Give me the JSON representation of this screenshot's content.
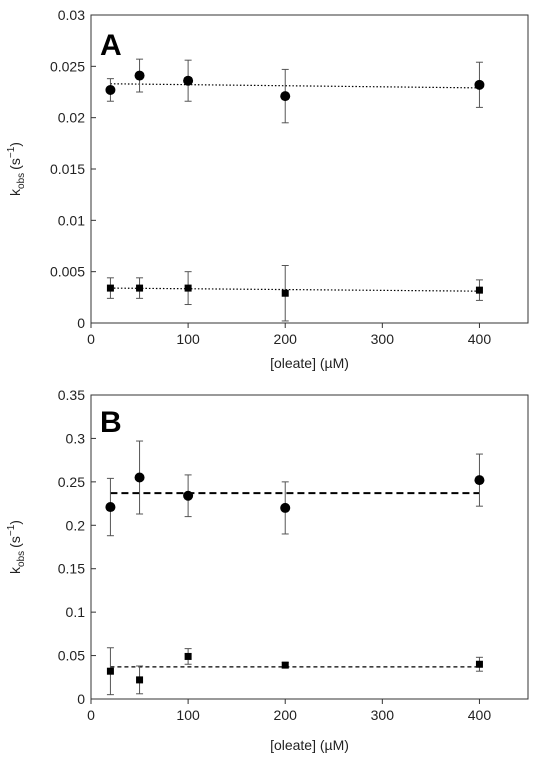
{
  "chart_data": [
    {
      "type": "scatter",
      "panel_label": "A",
      "xlabel": "[oleate] (µM)",
      "ylabel_main": "k",
      "ylabel_sub": "obs",
      "ylabel_unit": "(s",
      "ylabel_exp": "−1",
      "ylabel_close": ")",
      "xlim": [
        0,
        450
      ],
      "ylim": [
        0,
        0.03
      ],
      "xticks": [
        0,
        100,
        200,
        300,
        400
      ],
      "xtick_labels": [
        "0",
        "100",
        "200",
        "300",
        "400"
      ],
      "yticks": [
        0,
        0.005,
        0.01,
        0.015,
        0.02,
        0.025,
        0.03
      ],
      "ytick_labels": [
        "0",
        "0.005",
        "0.01",
        "0.015",
        "0.02",
        "0.025",
        "0.03"
      ],
      "grid": false,
      "series": [
        {
          "marker": "circle",
          "x": [
            20,
            50,
            100,
            200,
            400
          ],
          "y": [
            0.0227,
            0.0241,
            0.0236,
            0.0221,
            0.0232
          ],
          "err": [
            0.0011,
            0.0016,
            0.002,
            0.0026,
            0.0022
          ],
          "fit": {
            "style": "dotted",
            "x": [
              20,
              400
            ],
            "y": [
              0.0233,
              0.0229
            ]
          }
        },
        {
          "marker": "square",
          "x": [
            20,
            50,
            100,
            200,
            400
          ],
          "y": [
            0.0034,
            0.0034,
            0.0034,
            0.0029,
            0.0032
          ],
          "err": [
            0.001,
            0.001,
            0.0016,
            0.0027,
            0.001
          ],
          "fit": {
            "style": "dotted",
            "x": [
              20,
              400
            ],
            "y": [
              0.0034,
              0.0031
            ]
          }
        }
      ]
    },
    {
      "type": "scatter",
      "panel_label": "B",
      "xlabel": "[oleate] (µM)",
      "ylabel_main": "k",
      "ylabel_sub": "obs",
      "ylabel_unit": "(s",
      "ylabel_exp": "−1",
      "ylabel_close": ")",
      "xlim": [
        0,
        450
      ],
      "ylim": [
        0,
        0.35
      ],
      "xticks": [
        0,
        100,
        200,
        300,
        400
      ],
      "xtick_labels": [
        "0",
        "100",
        "200",
        "300",
        "400"
      ],
      "yticks": [
        0,
        0.05,
        0.1,
        0.15,
        0.2,
        0.25,
        0.3,
        0.35
      ],
      "ytick_labels": [
        "0",
        "0.05",
        "0.1",
        "0.15",
        "0.2",
        "0.25",
        "0.3",
        "0.35"
      ],
      "grid": false,
      "series": [
        {
          "marker": "circle",
          "x": [
            20,
            50,
            100,
            200,
            400
          ],
          "y": [
            0.221,
            0.255,
            0.234,
            0.22,
            0.252
          ],
          "err": [
            0.033,
            0.042,
            0.024,
            0.03,
            0.03
          ],
          "fit": {
            "style": "dashed",
            "x": [
              20,
              400
            ],
            "y": [
              0.237,
              0.237
            ]
          }
        },
        {
          "marker": "square",
          "x": [
            20,
            50,
            100,
            200,
            400
          ],
          "y": [
            0.032,
            0.022,
            0.049,
            0.039,
            0.04
          ],
          "err": [
            0.027,
            0.016,
            0.009,
            0.003,
            0.008
          ],
          "fit": {
            "style": "dashed",
            "x": [
              20,
              400
            ],
            "y": [
              0.037,
              0.037
            ]
          }
        }
      ]
    }
  ]
}
